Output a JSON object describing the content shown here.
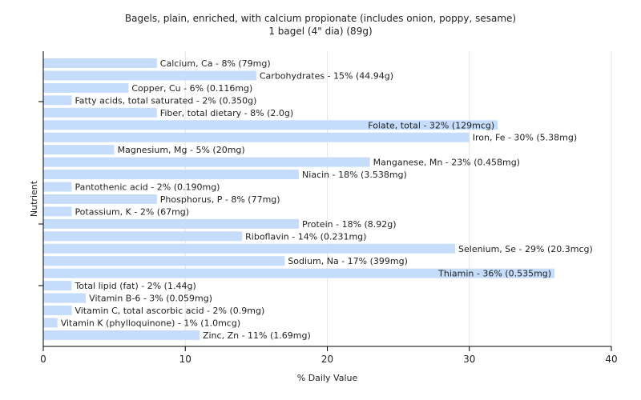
{
  "chart_data": {
    "type": "bar",
    "orientation": "horizontal",
    "title": "Bagels, plain, enriched, with calcium propionate (includes onion, poppy, sesame)",
    "subtitle": "1 bagel (4\" dia) (89g)",
    "xlabel": "% Daily Value",
    "ylabel": "Nutrient",
    "xlim": [
      0,
      40
    ],
    "xticks": [
      0,
      10,
      20,
      30,
      40
    ],
    "grid": true,
    "bar_color": "#c5ddfb",
    "categories": [
      "Calcium, Ca",
      "Carbohydrates",
      "Copper, Cu",
      "Fatty acids, total saturated",
      "Fiber, total dietary",
      "Folate, total",
      "Iron, Fe",
      "Magnesium, Mg",
      "Manganese, Mn",
      "Niacin",
      "Pantothenic acid",
      "Phosphorus, P",
      "Potassium, K",
      "Protein",
      "Riboflavin",
      "Selenium, Se",
      "Sodium, Na",
      "Thiamin",
      "Total lipid (fat)",
      "Vitamin B-6",
      "Vitamin C, total ascorbic acid",
      "Vitamin K (phylloquinone)",
      "Zinc, Zn"
    ],
    "values": [
      8,
      15,
      6,
      2,
      8,
      32,
      30,
      5,
      23,
      18,
      2,
      8,
      2,
      18,
      14,
      29,
      17,
      36,
      2,
      3,
      2,
      1,
      11
    ],
    "labels": [
      "Calcium, Ca - 8% (79mg)",
      "Carbohydrates - 15% (44.94g)",
      "Copper, Cu - 6% (0.116mg)",
      "Fatty acids, total saturated - 2% (0.350g)",
      "Fiber, total dietary - 8% (2.0g)",
      "Folate, total - 32% (129mcg)",
      "Iron, Fe - 30% (5.38mg)",
      "Magnesium, Mg - 5% (20mg)",
      "Manganese, Mn - 23% (0.458mg)",
      "Niacin - 18% (3.538mg)",
      "Pantothenic acid - 2% (0.190mg)",
      "Phosphorus, P - 8% (77mg)",
      "Potassium, K - 2% (67mg)",
      "Protein - 18% (8.92g)",
      "Riboflavin - 14% (0.231mg)",
      "Selenium, Se - 29% (20.3mcg)",
      "Sodium, Na - 17% (399mg)",
      "Thiamin - 36% (0.535mg)",
      "Total lipid (fat) - 2% (1.44g)",
      "Vitamin B-6 - 3% (0.059mg)",
      "Vitamin C, total ascorbic acid - 2% (0.9mg)",
      "Vitamin K (phylloquinone) - 1% (1.0mcg)",
      "Zinc, Zn - 11% (1.69mg)"
    ]
  }
}
